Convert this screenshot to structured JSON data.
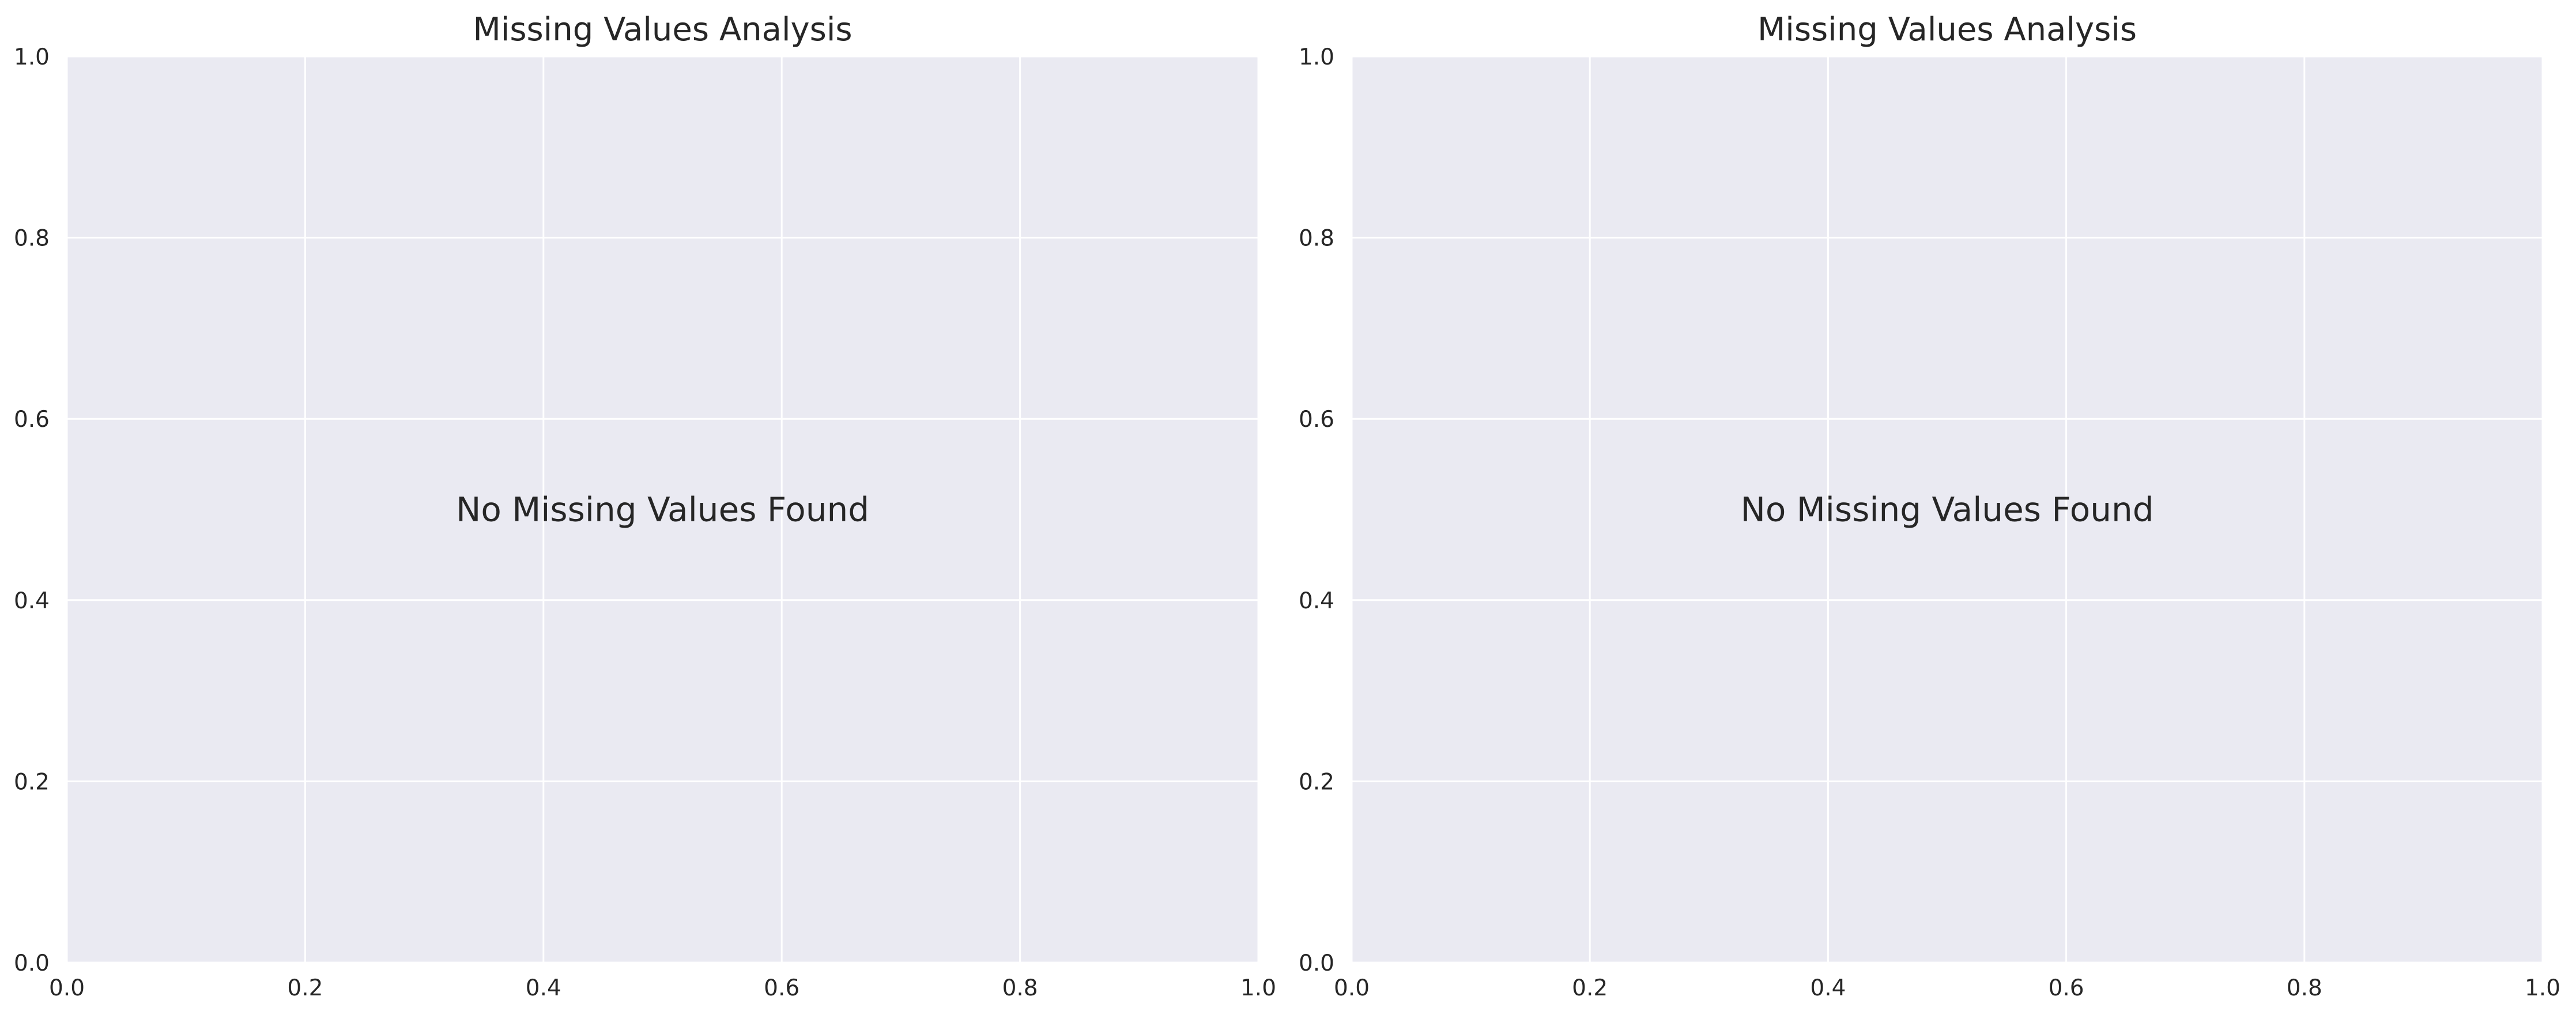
{
  "chart_data": [
    {
      "type": "scatter",
      "title": "Missing Values Analysis",
      "annotation": "No Missing Values Found",
      "x_ticks": [
        "0.0",
        "0.2",
        "0.4",
        "0.6",
        "0.8",
        "1.0"
      ],
      "y_ticks": [
        "0.0",
        "0.2",
        "0.4",
        "0.6",
        "0.8",
        "1.0"
      ],
      "xlim": [
        0,
        1
      ],
      "ylim": [
        0,
        1
      ],
      "grid": true,
      "series": [],
      "colors": {
        "plot_background": "#EAEAF2",
        "grid": "#FFFFFF",
        "text": "#262626"
      }
    },
    {
      "type": "scatter",
      "title": "Missing Values Analysis",
      "annotation": "No Missing Values Found",
      "x_ticks": [
        "0.0",
        "0.2",
        "0.4",
        "0.6",
        "0.8",
        "1.0"
      ],
      "y_ticks": [
        "0.0",
        "0.2",
        "0.4",
        "0.6",
        "0.8",
        "1.0"
      ],
      "xlim": [
        0,
        1
      ],
      "ylim": [
        0,
        1
      ],
      "grid": true,
      "series": [],
      "colors": {
        "plot_background": "#EAEAF2",
        "grid": "#FFFFFF",
        "text": "#262626"
      }
    }
  ]
}
